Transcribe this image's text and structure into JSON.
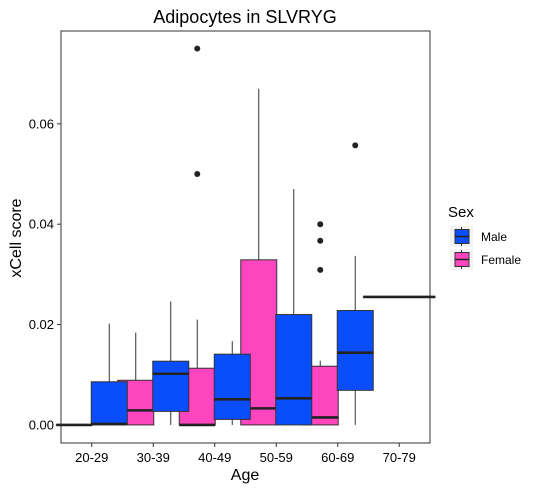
{
  "chart_data": {
    "type": "boxplot",
    "title": "Adipocytes in SLVRYG",
    "xlabel": "Age",
    "ylabel": "xCell score",
    "categories": [
      "20-29",
      "30-39",
      "40-49",
      "50-59",
      "60-69",
      "70-79"
    ],
    "ylim": [
      -0.0036,
      0.0785
    ],
    "yticks": [
      0.0,
      0.02,
      0.04,
      0.06
    ],
    "ytick_labels": [
      "0.00",
      "0.02",
      "0.04",
      "0.06"
    ],
    "grid": false,
    "legend": {
      "title": "Sex",
      "placement": "right",
      "entries": [
        {
          "label": "Male",
          "color": "#0a4dfa"
        },
        {
          "label": "Female",
          "color": "#fd45c0"
        }
      ]
    },
    "series": [
      {
        "name": "Female",
        "color": "#fd45c0",
        "boxes": [
          {
            "category": "20-29",
            "whisker_low": 0.0,
            "q1": 0.0,
            "median": 0.0,
            "q3": 0.0,
            "whisker_high": 0.0,
            "outliers": []
          },
          {
            "category": "30-39",
            "whisker_low": 0.0,
            "q1": 0.0,
            "median": 0.0029,
            "q3": 0.0089,
            "whisker_high": 0.0184,
            "outliers": []
          },
          {
            "category": "40-49",
            "whisker_low": 0.0,
            "q1": 0.0,
            "median": 0.0,
            "q3": 0.0113,
            "whisker_high": 0.021,
            "outliers": [
              0.075,
              0.05
            ]
          },
          {
            "category": "50-59",
            "whisker_low": 0.0,
            "q1": 0.0,
            "median": 0.0033,
            "q3": 0.0329,
            "whisker_high": 0.067,
            "outliers": []
          },
          {
            "category": "60-69",
            "whisker_low": 0.0,
            "q1": 0.0,
            "median": 0.0015,
            "q3": 0.0117,
            "whisker_high": 0.0128,
            "outliers": [
              0.04,
              0.0367,
              0.0309
            ]
          }
        ]
      },
      {
        "name": "Male",
        "color": "#0a4dfa",
        "boxes": [
          {
            "category": "20-29",
            "whisker_low": 0.0,
            "q1": 0.0,
            "median": 0.0002,
            "q3": 0.0086,
            "whisker_high": 0.0202,
            "outliers": []
          },
          {
            "category": "30-39",
            "whisker_low": 0.0,
            "q1": 0.0027,
            "median": 0.0102,
            "q3": 0.0127,
            "whisker_high": 0.0246,
            "outliers": []
          },
          {
            "category": "40-49",
            "whisker_low": 0.0,
            "q1": 0.0011,
            "median": 0.0051,
            "q3": 0.0141,
            "whisker_high": 0.0167,
            "outliers": []
          },
          {
            "category": "50-59",
            "whisker_low": 0.0,
            "q1": 0.0,
            "median": 0.0053,
            "q3": 0.022,
            "whisker_high": 0.047,
            "outliers": []
          },
          {
            "category": "60-69",
            "whisker_low": 0.0,
            "q1": 0.0069,
            "median": 0.0144,
            "q3": 0.0228,
            "whisker_high": 0.0337,
            "outliers": [
              0.0557
            ]
          },
          {
            "category": "70-79",
            "whisker_low": 0.0255,
            "q1": 0.0255,
            "median": 0.0255,
            "q3": 0.0255,
            "whisker_high": 0.0255,
            "outliers": [],
            "single": true
          }
        ]
      }
    ]
  }
}
